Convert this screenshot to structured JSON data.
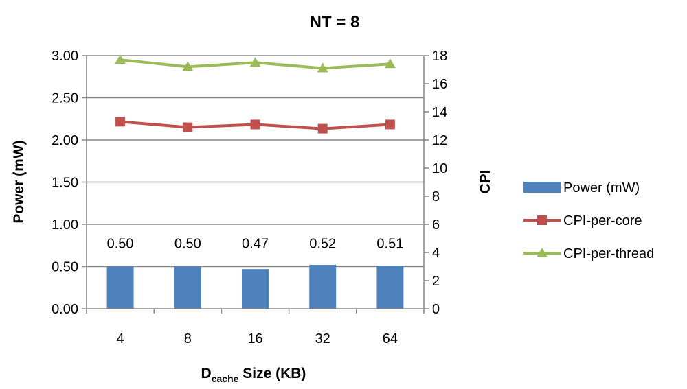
{
  "chart_data": {
    "type": "bar+line",
    "title": "NT = 8",
    "xlabel_main": "D",
    "xlabel_sub": "cache",
    "xlabel_rest": " Size (KB)",
    "ylabel": "Power (mW)",
    "y2label": "CPI",
    "categories": [
      "4",
      "8",
      "16",
      "32",
      "64"
    ],
    "ylim": [
      0,
      3.0
    ],
    "yticks": [
      "0.00",
      "0.50",
      "1.00",
      "1.50",
      "2.00",
      "2.50",
      "3.00"
    ],
    "y2lim": [
      0,
      18
    ],
    "y2ticks": [
      "0",
      "2",
      "4",
      "6",
      "8",
      "10",
      "12",
      "14",
      "16",
      "18"
    ],
    "grid": true,
    "legend_position": "right",
    "series": [
      {
        "name": "Power (mW)",
        "kind": "bar",
        "axis": "left",
        "color": "#4F81BD",
        "values": [
          0.5,
          0.5,
          0.47,
          0.52,
          0.51
        ],
        "labels": [
          "0.50",
          "0.50",
          "0.47",
          "0.52",
          "0.51"
        ]
      },
      {
        "name": "CPI-per-core",
        "kind": "line",
        "axis": "right",
        "marker": "square",
        "color": "#C0504D",
        "values": [
          13.3,
          12.9,
          13.1,
          12.8,
          13.1
        ]
      },
      {
        "name": "CPI-per-thread",
        "kind": "line",
        "axis": "right",
        "marker": "triangle",
        "color": "#9BBB59",
        "values": [
          17.7,
          17.2,
          17.5,
          17.1,
          17.4
        ]
      }
    ]
  }
}
